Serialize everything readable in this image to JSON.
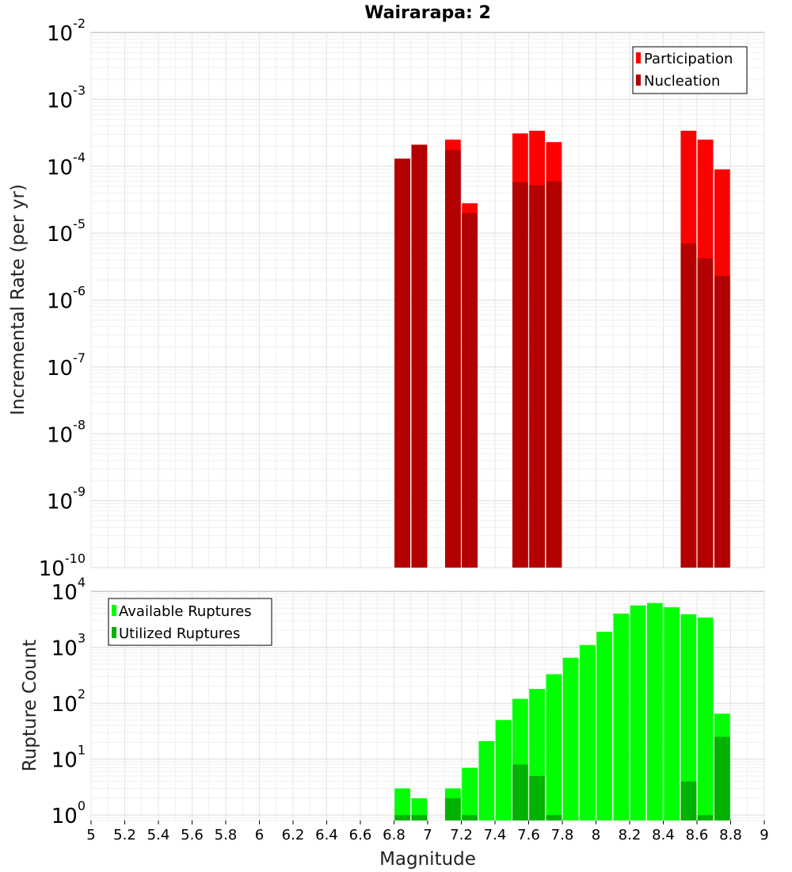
{
  "chart_data": [
    {
      "type": "bar",
      "panel": "top",
      "title": "Wairarapa: 2",
      "ylabel": "Incremental Rate (per yr)",
      "yscale": "log",
      "ylim": [
        1e-10,
        0.01
      ],
      "y_ticks": [
        {
          "base": "10",
          "exp": "-10",
          "value": 1e-10
        },
        {
          "base": "10",
          "exp": "-9",
          "value": 1e-09
        },
        {
          "base": "10",
          "exp": "-8",
          "value": 1e-08
        },
        {
          "base": "10",
          "exp": "-7",
          "value": 1e-07
        },
        {
          "base": "10",
          "exp": "-6",
          "value": 1e-06
        },
        {
          "base": "10",
          "exp": "-5",
          "value": 1e-05
        },
        {
          "base": "10",
          "exp": "-4",
          "value": 0.0001
        },
        {
          "base": "10",
          "exp": "-3",
          "value": 0.001
        },
        {
          "base": "10",
          "exp": "-2",
          "value": 0.01
        }
      ],
      "xlim": [
        5,
        9
      ],
      "legend_position": "top-right",
      "series": [
        {
          "name": "Participation",
          "color": "#ff0000",
          "x": [
            6.85,
            6.95,
            7.15,
            7.25,
            7.55,
            7.65,
            7.75,
            8.55,
            8.65,
            8.75
          ],
          "values": [
            0.00013,
            0.00021,
            0.00025,
            2.8e-05,
            0.00031,
            0.00034,
            0.00023,
            0.00034,
            0.00025,
            9e-05
          ]
        },
        {
          "name": "Nucleation",
          "color": "#b30000",
          "x": [
            6.85,
            6.95,
            7.15,
            7.25,
            7.55,
            7.65,
            7.75,
            8.55,
            8.65,
            8.75
          ],
          "values": [
            0.00013,
            0.00021,
            0.000175,
            2e-05,
            5.8e-05,
            5.2e-05,
            6e-05,
            7e-06,
            4.2e-06,
            2.3e-06
          ]
        }
      ]
    },
    {
      "type": "bar",
      "panel": "bottom",
      "xlabel": "Magnitude",
      "ylabel": "Rupture Count",
      "yscale": "log",
      "ylim": [
        0.8,
        10000
      ],
      "y_ticks": [
        {
          "base": "10",
          "exp": "0",
          "value": 1
        },
        {
          "base": "10",
          "exp": "1",
          "value": 10
        },
        {
          "base": "10",
          "exp": "2",
          "value": 100
        },
        {
          "base": "10",
          "exp": "3",
          "value": 1000
        },
        {
          "base": "10",
          "exp": "4",
          "value": 10000
        }
      ],
      "xlim": [
        5,
        9
      ],
      "x_ticks": [
        "5",
        "5.2",
        "5.4",
        "5.6",
        "5.8",
        "6",
        "6.2",
        "6.4",
        "6.6",
        "6.8",
        "7",
        "7.2",
        "7.4",
        "7.6",
        "7.8",
        "8",
        "8.2",
        "8.4",
        "8.6",
        "8.8",
        "9"
      ],
      "legend_position": "top-left",
      "series": [
        {
          "name": "Available Ruptures",
          "color": "#00ff00",
          "x": [
            6.85,
            6.95,
            7.15,
            7.25,
            7.35,
            7.45,
            7.55,
            7.65,
            7.75,
            7.85,
            7.95,
            8.05,
            8.15,
            8.25,
            8.35,
            8.45,
            8.55,
            8.65,
            8.75
          ],
          "values": [
            3,
            2,
            3,
            7,
            21,
            50,
            120,
            180,
            330,
            650,
            1100,
            1900,
            4000,
            5600,
            6200,
            5200,
            3900,
            3400,
            65
          ]
        },
        {
          "name": "Utilized Ruptures",
          "color": "#00b300",
          "x": [
            6.85,
            6.95,
            7.15,
            7.25,
            7.35,
            7.45,
            7.55,
            7.65,
            7.75,
            7.85,
            7.95,
            8.05,
            8.15,
            8.25,
            8.35,
            8.45,
            8.55,
            8.65,
            8.75
          ],
          "values": [
            1,
            1,
            2,
            1,
            0,
            0,
            8,
            5,
            1,
            0,
            0,
            0,
            0,
            0,
            0,
            0,
            4,
            1,
            25
          ]
        }
      ]
    }
  ]
}
